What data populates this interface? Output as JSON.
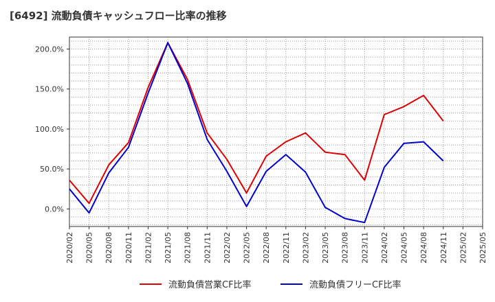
{
  "title": "[6492]  流動負債キャッシュフロー比率の推移",
  "chart_data": {
    "type": "line",
    "title": "[6492]  流動負債キャッシュフロー比率の推移",
    "xlabel": "",
    "ylabel": "",
    "x": [
      "2020/02",
      "2020/05",
      "2020/08",
      "2020/11",
      "2021/02",
      "2021/05",
      "2021/08",
      "2021/11",
      "2022/02",
      "2022/05",
      "2022/08",
      "2022/11",
      "2023/02",
      "2023/05",
      "2023/08",
      "2023/11",
      "2024/02",
      "2024/05",
      "2024/08",
      "2024/11"
    ],
    "x_ticks": [
      "2020/02",
      "2020/05",
      "2020/08",
      "2020/11",
      "2021/02",
      "2021/05",
      "2021/08",
      "2021/11",
      "2022/02",
      "2022/05",
      "2022/08",
      "2022/11",
      "2023/02",
      "2023/05",
      "2023/08",
      "2023/11",
      "2024/02",
      "2024/05",
      "2024/08",
      "2024/11",
      "2025/02",
      "2025/05"
    ],
    "y_ticks": [
      "0.0%",
      "50.0%",
      "100.0%",
      "150.0%",
      "200.0%"
    ],
    "ylim": [
      -22,
      215
    ],
    "series": [
      {
        "name": "流動負債営業CF比率",
        "color": "#dd0000",
        "values": [
          36,
          7,
          55,
          83,
          152,
          208,
          162,
          95,
          62,
          20,
          66,
          84,
          95,
          71,
          68,
          36,
          118,
          128,
          142,
          110
        ]
      },
      {
        "name": "流動負債フリーCF比率",
        "color": "#0000cc",
        "values": [
          25,
          -5,
          45,
          77,
          145,
          208,
          157,
          87,
          47,
          3,
          47,
          68,
          46,
          2,
          -12,
          -17,
          52,
          82,
          84,
          60
        ]
      }
    ],
    "grid": true,
    "legend_position": "bottom"
  }
}
